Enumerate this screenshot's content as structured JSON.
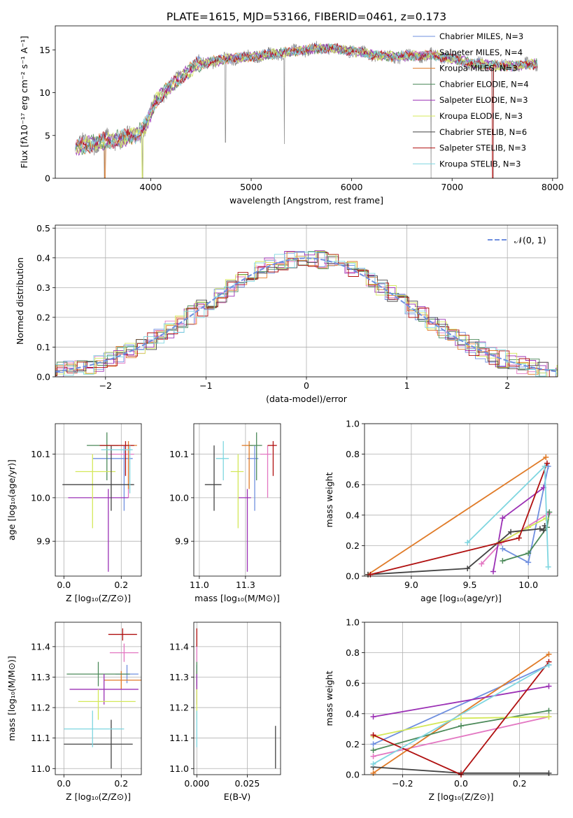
{
  "figure": {
    "title": "PLATE=1615, MJD=53166, FIBERID=0461, z=0.173"
  },
  "chart_data": [
    {
      "id": "spectrum",
      "type": "line",
      "xlabel": "wavelength [Angstrom, rest frame]",
      "ylabel": "Flux [fλ10⁻¹⁷ erg cm⁻² s⁻¹ A⁻¹]",
      "xlim": [
        3050,
        8050
      ],
      "ylim": [
        0,
        17.8
      ],
      "xticks": [
        4000,
        5000,
        6000,
        7000,
        8000
      ],
      "yticks": [
        0,
        5,
        10,
        15
      ],
      "grid": false,
      "legend_position": "upper right",
      "sed_anchors": {
        "x": [
          3250,
          3400,
          3550,
          3700,
          3850,
          3950,
          4050,
          4150,
          4300,
          4450,
          4600,
          4800,
          5000,
          5200,
          5400,
          5600,
          5800,
          6000,
          6200,
          6400,
          6600,
          6800,
          7000,
          7200,
          7400,
          7600,
          7850
        ],
        "y": [
          3.7,
          4.0,
          4.4,
          4.6,
          5.0,
          6.2,
          9.0,
          10.3,
          11.8,
          13.2,
          13.6,
          14.0,
          14.2,
          14.5,
          14.8,
          15.1,
          15.2,
          14.9,
          14.4,
          14.2,
          14.3,
          14.4,
          14.0,
          13.4,
          13.2,
          13.1,
          13.4
        ]
      },
      "series": [
        {
          "name": "Chabrier MILES, N_SSP=3",
          "color": "#6f8fdf"
        },
        {
          "name": "Salpeter MILES, N_SSP=4",
          "color": "#e377c2"
        },
        {
          "name": "Kroupa MILES, N_SSP=3",
          "color": "#e07b28"
        },
        {
          "name": "Chabrier ELODIE, N_SSP=4",
          "color": "#4c8a5a"
        },
        {
          "name": "Salpeter ELODIE, N_SSP=3",
          "color": "#9b30b5"
        },
        {
          "name": "Kroupa ELODIE, N_SSP=3",
          "color": "#d4e85a"
        },
        {
          "name": "Chabrier STELIB, N_SSP=6",
          "color": "#444444"
        },
        {
          "name": "Salpeter STELIB, N_SSP=3",
          "color": "#b01010"
        },
        {
          "name": "Kroupa STELIB, N_SSP=3",
          "color": "#7fd6e0"
        }
      ]
    },
    {
      "id": "residuals",
      "type": "line",
      "xlabel": "(data-model)/error",
      "ylabel": "Normed distribution",
      "xlim": [
        -2.5,
        2.5
      ],
      "ylim": [
        0,
        0.51
      ],
      "xticks": [
        -2,
        -1,
        0,
        1,
        2
      ],
      "yticks": [
        0.0,
        0.1,
        0.2,
        0.3,
        0.4,
        0.5
      ],
      "grid": true,
      "legend": "𝒩(0, 1)",
      "legend_position": "upper right",
      "normal_color": "#6f8fdf"
    },
    {
      "id": "age-vs-Z",
      "type": "scatter",
      "xlabel": "Z [log₁₀(Z/Z⊙)]",
      "ylabel": "age  [log₁₀(age/yr)]",
      "xlim": [
        -0.03,
        0.27
      ],
      "ylim": [
        9.82,
        10.17
      ],
      "xticks": [
        0.0,
        0.2
      ],
      "yticks": [
        9.9,
        10.0,
        10.1
      ],
      "grid": true,
      "points": [
        {
          "x": 0.21,
          "y": 10.09,
          "xerr": [
            0.11,
            0.03
          ],
          "yerr": [
            0.12,
            0.03
          ],
          "color": "#6f8fdf"
        },
        {
          "x": 0.225,
          "y": 10.1,
          "xerr": [
            0.07,
            0.02
          ],
          "yerr": [
            0.1,
            0.02
          ],
          "color": "#e377c2"
        },
        {
          "x": 0.225,
          "y": 10.12,
          "xerr": [
            0.1,
            0.03
          ],
          "yerr": [
            0.1,
            0.01
          ],
          "color": "#e07b28"
        },
        {
          "x": 0.15,
          "y": 10.12,
          "xerr": [
            0.07,
            0.04
          ],
          "yerr": [
            0.08,
            0.03
          ],
          "color": "#4c8a5a"
        },
        {
          "x": 0.155,
          "y": 10.0,
          "xerr": [
            0.14,
            0.07
          ],
          "yerr": [
            0.17,
            0.02
          ],
          "color": "#9b30b5"
        },
        {
          "x": 0.1,
          "y": 10.06,
          "xerr": [
            0.06,
            0.08
          ],
          "yerr": [
            0.13,
            0.04
          ],
          "color": "#d4e85a"
        },
        {
          "x": 0.165,
          "y": 10.03,
          "xerr": [
            0.17,
            0.08
          ],
          "yerr": [
            0.06,
            0.09
          ],
          "color": "#444444"
        },
        {
          "x": 0.215,
          "y": 10.12,
          "xerr": [
            0.09,
            0.03
          ],
          "yerr": [
            0.07,
            0.01
          ],
          "color": "#b01010"
        },
        {
          "x": 0.23,
          "y": 10.11,
          "xerr": [
            0.1,
            0.01
          ],
          "yerr": [
            0.1,
            0.01
          ],
          "color": "#7fd6e0"
        }
      ]
    },
    {
      "id": "age-vs-mass",
      "type": "scatter",
      "xlabel": "mass [log₁₀(M/M⊙)]",
      "ylabel": "",
      "xlim": [
        10.97,
        11.44
      ],
      "ylim": [
        9.82,
        10.17
      ],
      "xticks": [
        11.0,
        11.25
      ],
      "yticks": [
        9.9,
        10.0,
        10.1
      ],
      "grid": true,
      "points": [
        {
          "x": 11.3,
          "y": 10.09,
          "xerr": [
            0.04,
            0.02
          ],
          "yerr": [
            0.12,
            0.03
          ],
          "color": "#6f8fdf"
        },
        {
          "x": 11.37,
          "y": 10.1,
          "xerr": [
            0.04,
            0.02
          ],
          "yerr": [
            0.1,
            0.02
          ],
          "color": "#e377c2"
        },
        {
          "x": 11.27,
          "y": 10.12,
          "xerr": [
            0.04,
            0.02
          ],
          "yerr": [
            0.1,
            0.01
          ],
          "color": "#e07b28"
        },
        {
          "x": 11.31,
          "y": 10.12,
          "xerr": [
            0.04,
            0.03
          ],
          "yerr": [
            0.08,
            0.03
          ],
          "color": "#4c8a5a"
        },
        {
          "x": 11.26,
          "y": 10.0,
          "xerr": [
            0.05,
            0.02
          ],
          "yerr": [
            0.17,
            0.02
          ],
          "color": "#9b30b5"
        },
        {
          "x": 11.21,
          "y": 10.06,
          "xerr": [
            0.04,
            0.03
          ],
          "yerr": [
            0.13,
            0.04
          ],
          "color": "#d4e85a"
        },
        {
          "x": 11.08,
          "y": 10.03,
          "xerr": [
            0.05,
            0.04
          ],
          "yerr": [
            0.06,
            0.09
          ],
          "color": "#444444"
        },
        {
          "x": 11.4,
          "y": 10.12,
          "xerr": [
            0.03,
            0.02
          ],
          "yerr": [
            0.07,
            0.01
          ],
          "color": "#b01010"
        },
        {
          "x": 11.13,
          "y": 10.09,
          "xerr": [
            0.04,
            0.03
          ],
          "yerr": [
            0.05,
            0.04
          ],
          "color": "#7fd6e0"
        }
      ]
    },
    {
      "id": "weight-vs-age",
      "type": "line",
      "xlabel": "age  [log₁₀(age/yr)]",
      "ylabel": "mass weight",
      "xlim": [
        8.6,
        10.25
      ],
      "ylim": [
        0,
        1.0
      ],
      "xticks": [
        9.0,
        9.5,
        10.0
      ],
      "yticks": [
        0.0,
        0.2,
        0.4,
        0.6,
        0.8,
        1.0
      ],
      "grid": true,
      "series": [
        {
          "color": "#6f8fdf",
          "x": [
            9.78,
            10.0,
            10.17
          ],
          "y": [
            0.18,
            0.09,
            0.72
          ]
        },
        {
          "color": "#e377c2",
          "x": [
            9.6,
            9.77,
            10.17
          ],
          "y": [
            0.08,
            0.22,
            0.41
          ]
        },
        {
          "color": "#e07b28",
          "x": [
            8.63,
            10.15
          ],
          "y": [
            0.01,
            0.78
          ]
        },
        {
          "color": "#4c8a5a",
          "x": [
            9.78,
            10.0,
            10.16,
            10.18
          ],
          "y": [
            0.1,
            0.15,
            0.32,
            0.42
          ]
        },
        {
          "color": "#9b30b5",
          "x": [
            9.7,
            9.78,
            10.13
          ],
          "y": [
            0.03,
            0.38,
            0.58
          ]
        },
        {
          "color": "#d4e85a",
          "x": [
            9.75,
            10.0,
            10.15
          ],
          "y": [
            0.22,
            0.32,
            0.38
          ]
        },
        {
          "color": "#444444",
          "x": [
            8.63,
            9.48,
            9.85,
            10.1,
            10.13,
            10.14
          ],
          "y": [
            0.01,
            0.05,
            0.29,
            0.31,
            0.3,
            0.33
          ]
        },
        {
          "color": "#b01010",
          "x": [
            8.65,
            9.92,
            10.16
          ],
          "y": [
            0.01,
            0.25,
            0.74
          ]
        },
        {
          "color": "#7fd6e0",
          "x": [
            9.48,
            10.14,
            10.17
          ],
          "y": [
            0.22,
            0.72,
            0.06
          ]
        }
      ]
    },
    {
      "id": "mass-vs-Z",
      "type": "scatter",
      "xlabel": "Z [log₁₀(Z/Z⊙)]",
      "ylabel": "mass [log₁₀(M/M⊙)]",
      "xlim": [
        -0.03,
        0.27
      ],
      "ylim": [
        10.98,
        11.48
      ],
      "xticks": [
        0.0,
        0.2
      ],
      "yticks": [
        11.0,
        11.1,
        11.2,
        11.3,
        11.4
      ],
      "grid": true,
      "points": [
        {
          "x": 0.22,
          "y": 11.31,
          "xerr": [
            0.04,
            0.04
          ],
          "yerr": [
            0.03,
            0.03
          ],
          "color": "#6f8fdf"
        },
        {
          "x": 0.21,
          "y": 11.38,
          "xerr": [
            0.05,
            0.05
          ],
          "yerr": [
            0.03,
            0.03
          ],
          "color": "#e377c2"
        },
        {
          "x": 0.2,
          "y": 11.29,
          "xerr": [
            0.06,
            0.07
          ],
          "yerr": [
            0.03,
            0.03
          ],
          "color": "#e07b28"
        },
        {
          "x": 0.12,
          "y": 11.31,
          "xerr": [
            0.11,
            0.11
          ],
          "yerr": [
            0.04,
            0.04
          ],
          "color": "#4c8a5a"
        },
        {
          "x": 0.14,
          "y": 11.26,
          "xerr": [
            0.12,
            0.12
          ],
          "yerr": [
            0.05,
            0.05
          ],
          "color": "#9b30b5"
        },
        {
          "x": 0.12,
          "y": 11.22,
          "xerr": [
            0.07,
            0.13
          ],
          "yerr": [
            0.06,
            0.04
          ],
          "color": "#d4e85a"
        },
        {
          "x": 0.165,
          "y": 11.08,
          "xerr": [
            0.165,
            0.075
          ],
          "yerr": [
            0.08,
            0.08
          ],
          "color": "#444444"
        },
        {
          "x": 0.205,
          "y": 11.44,
          "xerr": [
            0.05,
            0.05
          ],
          "yerr": [
            0.02,
            0.02
          ],
          "color": "#b01010"
        },
        {
          "x": 0.1,
          "y": 11.13,
          "xerr": [
            0.1,
            0.11
          ],
          "yerr": [
            0.06,
            0.06
          ],
          "color": "#7fd6e0"
        }
      ]
    },
    {
      "id": "mass-vs-ebv",
      "type": "scatter",
      "xlabel": "E(B-V)",
      "ylabel": "",
      "xlim": [
        -0.0015,
        0.0415
      ],
      "ylim": [
        10.98,
        11.48
      ],
      "xticks": [
        0.0,
        0.025
      ],
      "yticks": [
        11.0,
        11.1,
        11.2,
        11.3,
        11.4
      ],
      "grid": true,
      "points": [
        {
          "x": 0.0,
          "y": 11.31,
          "xerr": [
            0,
            0
          ],
          "yerr": [
            0.03,
            0.03
          ],
          "color": "#6f8fdf"
        },
        {
          "x": 0.0,
          "y": 11.38,
          "xerr": [
            0,
            0
          ],
          "yerr": [
            0.03,
            0.03
          ],
          "color": "#e377c2"
        },
        {
          "x": 0.0,
          "y": 11.29,
          "xerr": [
            0,
            0
          ],
          "yerr": [
            0.03,
            0.03
          ],
          "color": "#e07b28"
        },
        {
          "x": 0.0,
          "y": 11.31,
          "xerr": [
            0,
            0
          ],
          "yerr": [
            0.04,
            0.04
          ],
          "color": "#4c8a5a"
        },
        {
          "x": 0.0,
          "y": 11.26,
          "xerr": [
            0,
            0
          ],
          "yerr": [
            0.05,
            0.05
          ],
          "color": "#9b30b5"
        },
        {
          "x": 0.0,
          "y": 11.22,
          "xerr": [
            0,
            0
          ],
          "yerr": [
            0.06,
            0.04
          ],
          "color": "#d4e85a"
        },
        {
          "x": 0.039,
          "y": 11.08,
          "xerr": [
            0,
            0
          ],
          "yerr": [
            0.08,
            0.06
          ],
          "color": "#444444"
        },
        {
          "x": 0.0,
          "y": 11.43,
          "xerr": [
            0,
            0
          ],
          "yerr": [
            0.03,
            0.03
          ],
          "color": "#b01010"
        },
        {
          "x": 0.0,
          "y": 11.13,
          "xerr": [
            0,
            0
          ],
          "yerr": [
            0.06,
            0.06
          ],
          "color": "#7fd6e0"
        }
      ]
    },
    {
      "id": "weight-vs-Z",
      "type": "line",
      "xlabel": "Z [log₁₀(Z/Z⊙)]",
      "ylabel": "mass weight",
      "xlim": [
        -0.33,
        0.33
      ],
      "ylim": [
        0,
        1.0
      ],
      "xticks": [
        -0.2,
        0.0,
        0.2
      ],
      "yticks": [
        0.0,
        0.2,
        0.4,
        0.6,
        0.8,
        1.0
      ],
      "grid": true,
      "series": [
        {
          "color": "#6f8fdf",
          "x": [
            -0.3,
            0.3
          ],
          "y": [
            0.2,
            0.72
          ]
        },
        {
          "color": "#e377c2",
          "x": [
            -0.3,
            0.3
          ],
          "y": [
            0.12,
            0.38
          ]
        },
        {
          "color": "#e07b28",
          "x": [
            -0.3,
            0.3
          ],
          "y": [
            0.01,
            0.79
          ]
        },
        {
          "color": "#4c8a5a",
          "x": [
            -0.3,
            0.0,
            0.3
          ],
          "y": [
            0.16,
            0.32,
            0.42
          ]
        },
        {
          "color": "#9b30b5",
          "x": [
            -0.3,
            0.3
          ],
          "y": [
            0.38,
            0.58
          ]
        },
        {
          "color": "#d4e85a",
          "x": [
            -0.3,
            0.0,
            0.3
          ],
          "y": [
            0.25,
            0.37,
            0.38
          ]
        },
        {
          "color": "#444444",
          "x": [
            -0.3,
            0.0,
            0.3
          ],
          "y": [
            0.05,
            0.01,
            0.01
          ]
        },
        {
          "color": "#b01010",
          "x": [
            -0.3,
            0.0,
            0.3
          ],
          "y": [
            0.26,
            0.0,
            0.74
          ]
        },
        {
          "color": "#7fd6e0",
          "x": [
            -0.3,
            0.3
          ],
          "y": [
            0.07,
            0.72
          ]
        }
      ]
    }
  ]
}
